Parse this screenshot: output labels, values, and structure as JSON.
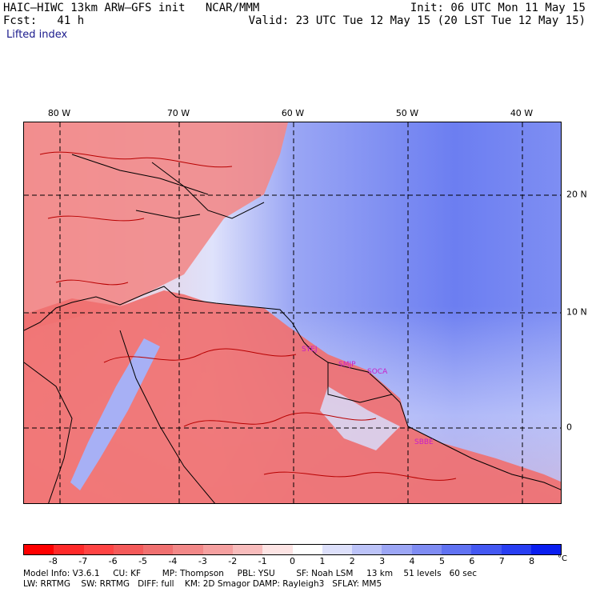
{
  "header": {
    "title": "HAIC–HIWC 13km ARW–GFS init   NCAR/MMM",
    "fcst": "Fcst:   41 h",
    "init": "Init: 06 UTC Mon 11 May 15",
    "valid": "Valid: 23 UTC Tue 12 May 15 (20 LST Tue 12 May 15)",
    "variable": "Lifted index"
  },
  "map": {
    "lon_labels": [
      "80 W",
      "70 W",
      "60 W",
      "50 W",
      "40 W"
    ],
    "lat_labels": [
      "20 N",
      "10 N",
      "0"
    ],
    "stations": [
      "SYEJ",
      "SMJP",
      "SOCA",
      "SBBE"
    ],
    "colors": {
      "land_warm": "#f07070",
      "ocean_cool": "#6a7ef0",
      "coast": "#000000",
      "contour": "#b80000",
      "station": "#c81ec8"
    }
  },
  "colorbar": {
    "labels": [
      "-8",
      "-7",
      "-6",
      "-5",
      "-4",
      "-3",
      "-2",
      "-1",
      "0",
      "1",
      "2",
      "3",
      "4",
      "5",
      "6",
      "7",
      "8"
    ],
    "unit": "°C",
    "colors": [
      "#ff0000",
      "#ff2a2a",
      "#ff4444",
      "#f45a5a",
      "#f07070",
      "#f28888",
      "#f5a0a0",
      "#f8bcbc",
      "#fde4e4",
      "#ffffff",
      "#dde0fb",
      "#bcc3f8",
      "#9ca6f5",
      "#7f8cf3",
      "#6072f2",
      "#4458f2",
      "#283ef2",
      "#0a1ef0"
    ]
  },
  "footer": {
    "line1": "Model Info: V3.6.1     CU: KF        MP: Thompson     PBL: YSU        SF: Noah LSM     13 km    51 levels   60 sec",
    "line2": "LW: RRTMG    SW: RRTMG   DIFF: full    KM: 2D Smagor DAMP: Rayleigh3   SFLAY: MM5"
  }
}
